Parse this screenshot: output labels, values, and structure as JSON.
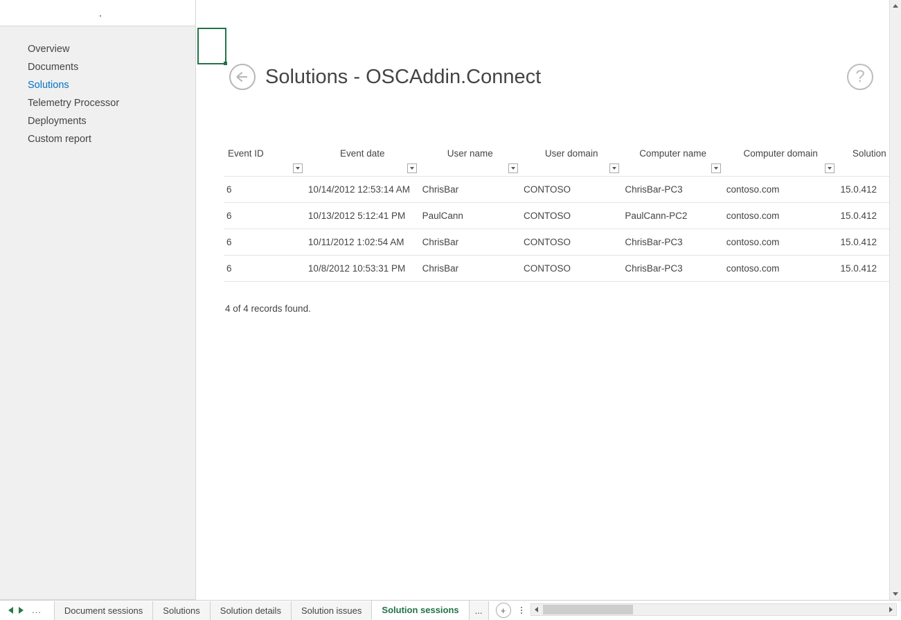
{
  "colors": {
    "accent": "#0072c6",
    "excel_green": "#217346",
    "text": "#444444",
    "sidebar_bg": "#f0f0f0",
    "border": "#d6d6d6",
    "row_border": "#e4e4e4",
    "header_border": "#9d9d9d"
  },
  "sidebar": {
    "items": [
      {
        "label": "Overview"
      },
      {
        "label": "Documents"
      },
      {
        "label": "Solutions"
      },
      {
        "label": "Telemetry Processor"
      },
      {
        "label": "Deployments"
      },
      {
        "label": "Custom report"
      }
    ],
    "active_index": 2
  },
  "header": {
    "title": "Solutions - OSCAddin.Connect"
  },
  "table": {
    "columns": [
      {
        "label": "Event ID"
      },
      {
        "label": "Event date"
      },
      {
        "label": "User name"
      },
      {
        "label": "User domain"
      },
      {
        "label": "Computer name"
      },
      {
        "label": "Computer domain"
      },
      {
        "label": "Solution"
      }
    ],
    "rows": [
      {
        "event_id": "6",
        "event_date": "10/14/2012 12:53:14 AM",
        "user_name": "ChrisBar",
        "user_domain": "CONTOSO",
        "computer_name": "ChrisBar-PC3",
        "computer_domain": "contoso.com",
        "solution": "15.0.412"
      },
      {
        "event_id": "6",
        "event_date": "10/13/2012 5:12:41 PM",
        "user_name": "PaulCann",
        "user_domain": "CONTOSO",
        "computer_name": "PaulCann-PC2",
        "computer_domain": "contoso.com",
        "solution": "15.0.412"
      },
      {
        "event_id": "6",
        "event_date": "10/11/2012 1:02:54 AM",
        "user_name": "ChrisBar",
        "user_domain": "CONTOSO",
        "computer_name": "ChrisBar-PC3",
        "computer_domain": "contoso.com",
        "solution": "15.0.412"
      },
      {
        "event_id": "6",
        "event_date": "10/8/2012 10:53:31 PM",
        "user_name": "ChrisBar",
        "user_domain": "CONTOSO",
        "computer_name": "ChrisBar-PC3",
        "computer_domain": "contoso.com",
        "solution": "15.0.412"
      }
    ]
  },
  "records_found": "4 of 4 records found.",
  "sheet_tabs": {
    "tabs": [
      {
        "label": "Document sessions"
      },
      {
        "label": "Solutions"
      },
      {
        "label": "Solution details"
      },
      {
        "label": "Solution issues"
      },
      {
        "label": "Solution sessions"
      }
    ],
    "truncated_label": "...",
    "active_index": 4
  }
}
